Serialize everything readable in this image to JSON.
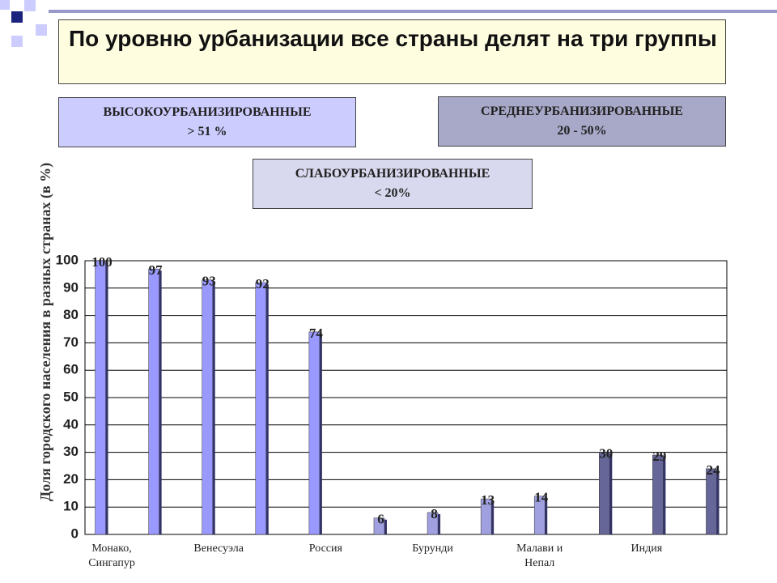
{
  "header": {
    "title": "По уровню урбанизации все страны делят на три группы"
  },
  "boxes": [
    {
      "title": "ВЫСОКОУРБАНИЗИРОВАННЫЕ",
      "range": "> 51 %"
    },
    {
      "title": "СРЕДНЕУРБАНИЗИРОВАННЫЕ",
      "range": "20 - 50%"
    },
    {
      "title": "СЛАБОУРБАНИЗИРОВАННЫЕ",
      "range": "< 20%"
    }
  ],
  "chart_data": {
    "type": "bar",
    "y_label": "Доля городского населения в разных странах (в %)",
    "categories": [
      "Монако, Сингапур",
      null,
      "Венесуэла",
      null,
      "Россия",
      null,
      "Бурунди",
      null,
      "Малави и Непал",
      null,
      "Индия",
      null
    ],
    "series": [
      {
        "color": "#9999ff",
        "values": [
          100,
          97,
          93,
          92,
          74,
          null,
          null,
          null,
          null,
          null,
          null,
          null
        ]
      },
      {
        "color": "#a0a0e0",
        "values": [
          null,
          null,
          null,
          null,
          null,
          6,
          8,
          13,
          14,
          null,
          null,
          null
        ]
      },
      {
        "color": "#666699",
        "values": [
          null,
          null,
          null,
          null,
          null,
          null,
          null,
          null,
          null,
          30,
          29,
          24
        ]
      }
    ],
    "ylim": [
      0,
      100
    ],
    "yticks": [
      0,
      10,
      20,
      30,
      40,
      50,
      60,
      70,
      80,
      90,
      100
    ],
    "grid": true
  }
}
